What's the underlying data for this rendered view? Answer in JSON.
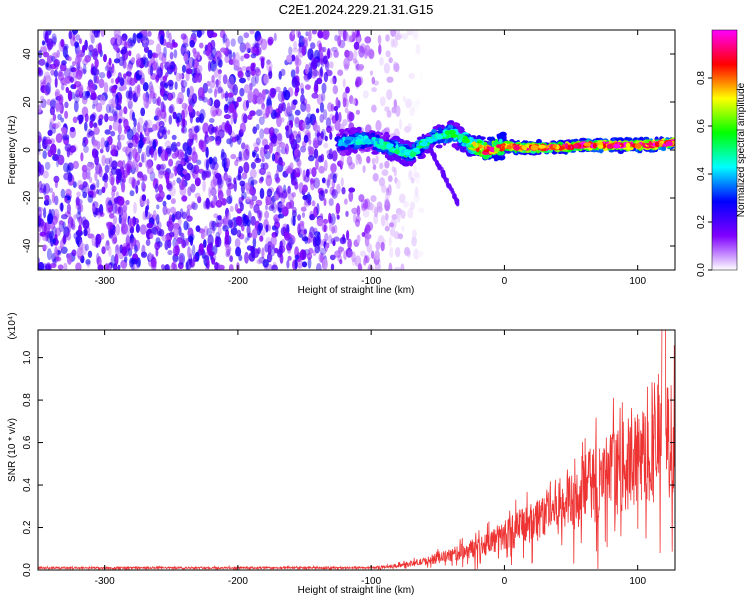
{
  "title": "C2E1.2024.229.21.31.G15",
  "chart_data": [
    {
      "type": "heatmap",
      "xlabel": "Height of straight line (km)",
      "ylabel": "Frequency (Hz)",
      "xlim": [
        -350,
        128
      ],
      "ylim": [
        -50,
        50
      ],
      "xticks": [
        -300,
        -200,
        -100,
        0,
        100
      ],
      "yticks": [
        -40,
        -20,
        0,
        20,
        40
      ],
      "grid": false,
      "colorbar": {
        "label": "Normalized spectral amplitude",
        "range": [
          0.0,
          1.0
        ],
        "ticks": [
          "0.0",
          "0.2",
          "0.4",
          "0.6",
          "0.8"
        ],
        "colors": [
          "#ffffff",
          "#8000ff",
          "#0000ff",
          "#00ffff",
          "#00ff00",
          "#ffff00",
          "#ff0000",
          "#ff00ff"
        ]
      },
      "signal_trace": {
        "x": [
          -125,
          -110,
          -100,
          -90,
          -80,
          -70,
          -60,
          -50,
          -40,
          -30,
          -25,
          -20,
          -15,
          -10,
          -5,
          0,
          10,
          20,
          40,
          60,
          80,
          100,
          128
        ],
        "y": [
          3,
          4,
          4,
          2,
          0,
          -2,
          3,
          6,
          7,
          4,
          2,
          1,
          0,
          0,
          1,
          2,
          1,
          1,
          1,
          2,
          2,
          2,
          3
        ],
        "amplitude": [
          0.35,
          0.45,
          0.4,
          0.45,
          0.5,
          0.45,
          0.5,
          0.45,
          0.5,
          0.55,
          0.6,
          0.75,
          0.8,
          0.85,
          0.8,
          0.8,
          0.82,
          0.85,
          0.85,
          0.9,
          0.9,
          0.9,
          0.9
        ]
      },
      "noise_region": {
        "x_start": -350,
        "x_end": -80,
        "amplitude": 0.15
      }
    },
    {
      "type": "line",
      "xlabel": "Height of straight line (km)",
      "ylabel": "SNR (10 * v/v)",
      "multiplier": "(x10⁴)",
      "xlim": [
        -350,
        128
      ],
      "ylim": [
        0,
        1.13
      ],
      "xticks": [
        -300,
        -200,
        -100,
        0,
        100
      ],
      "yticks": [
        "0.0",
        "0.2",
        "0.4",
        "0.6",
        "0.8",
        "1.0"
      ],
      "grid": false,
      "series": [
        {
          "color": "#ee3333",
          "envelope": {
            "x": [
              -350,
              -100,
              -80,
              -60,
              -40,
              -20,
              0,
              20,
              40,
              60,
              80,
              100,
              110,
              120,
              128
            ],
            "y": [
              0.01,
              0.01,
              0.02,
              0.04,
              0.07,
              0.11,
              0.16,
              0.23,
              0.3,
              0.38,
              0.45,
              0.52,
              0.56,
              0.6,
              0.62
            ]
          }
        }
      ]
    }
  ]
}
